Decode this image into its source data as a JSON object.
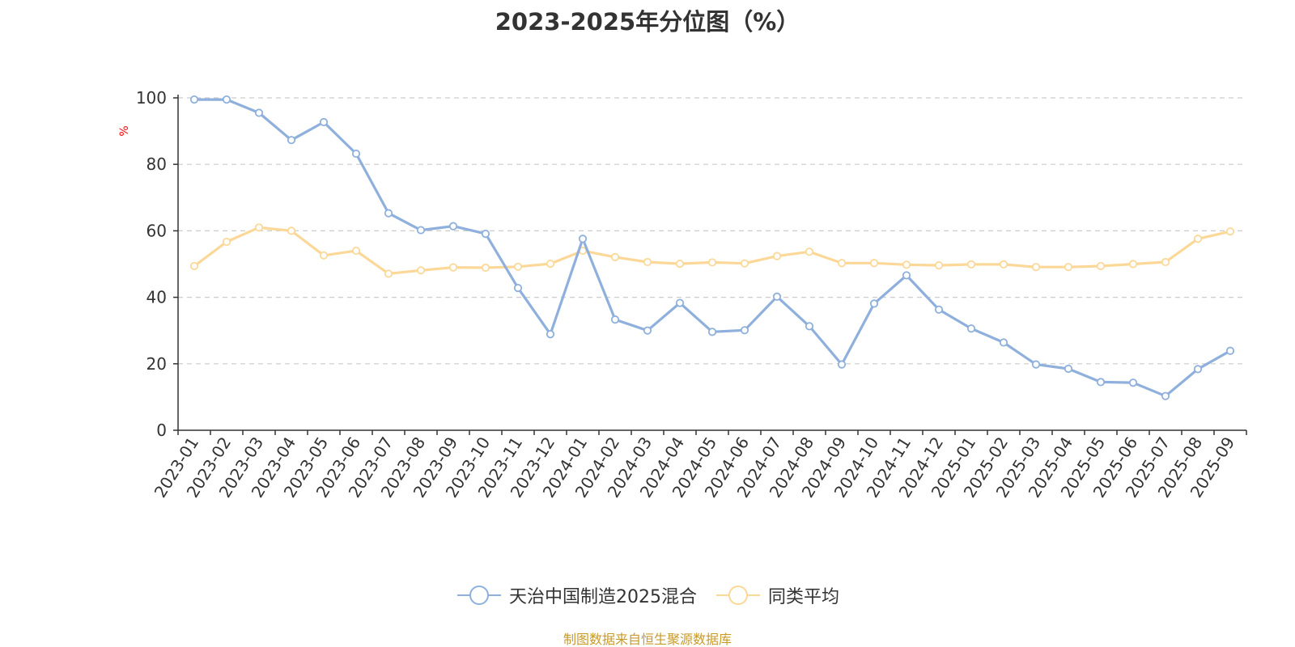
{
  "title": "2023-2025年分位图（%）",
  "source_note": "制图数据来自恒生聚源数据库",
  "colors": {
    "fund": "#8fb0dc",
    "peer": "#fcd898",
    "axis": "#333333",
    "grid": "#cccccc",
    "unit": "#ff0000"
  },
  "chart_data": {
    "type": "line",
    "ylabel": "%",
    "ylim": [
      0,
      100
    ],
    "yticks": [
      0,
      20,
      40,
      60,
      80,
      100
    ],
    "grid": true,
    "legend_position": "bottom",
    "categories": [
      "2023-01",
      "2023-02",
      "2023-03",
      "2023-04",
      "2023-05",
      "2023-06",
      "2023-07",
      "2023-08",
      "2023-09",
      "2023-10",
      "2023-11",
      "2023-12",
      "2024-01",
      "2024-02",
      "2024-03",
      "2024-04",
      "2024-05",
      "2024-06",
      "2024-07",
      "2024-08",
      "2024-09",
      "2024-10",
      "2024-11",
      "2024-12",
      "2025-01",
      "2025-02",
      "2025-03",
      "2025-04",
      "2025-05",
      "2025-06",
      "2025-07",
      "2025-08",
      "2025-09"
    ],
    "series": [
      {
        "name": "天治中国制造2025混合",
        "color": "#8fb0dc",
        "values": [
          99.5,
          99.5,
          95.5,
          87.3,
          92.7,
          83.2,
          65.3,
          60.2,
          61.4,
          59.1,
          42.8,
          28.9,
          57.6,
          33.3,
          30.0,
          38.3,
          29.6,
          30.1,
          40.2,
          31.3,
          19.8,
          38.1,
          46.6,
          36.3,
          30.6,
          26.4,
          19.8,
          18.5,
          14.5,
          14.3,
          10.3,
          18.4,
          23.9
        ]
      },
      {
        "name": "同类平均",
        "color": "#fcd898",
        "values": [
          49.4,
          56.7,
          61.0,
          60.0,
          52.6,
          54.0,
          47.1,
          48.1,
          49.0,
          48.9,
          49.2,
          50.1,
          54.0,
          52.1,
          50.6,
          50.1,
          50.5,
          50.2,
          52.4,
          53.7,
          50.3,
          50.3,
          49.8,
          49.6,
          49.9,
          49.9,
          49.1,
          49.1,
          49.4,
          50.0,
          50.6,
          57.6,
          59.8
        ]
      }
    ]
  }
}
